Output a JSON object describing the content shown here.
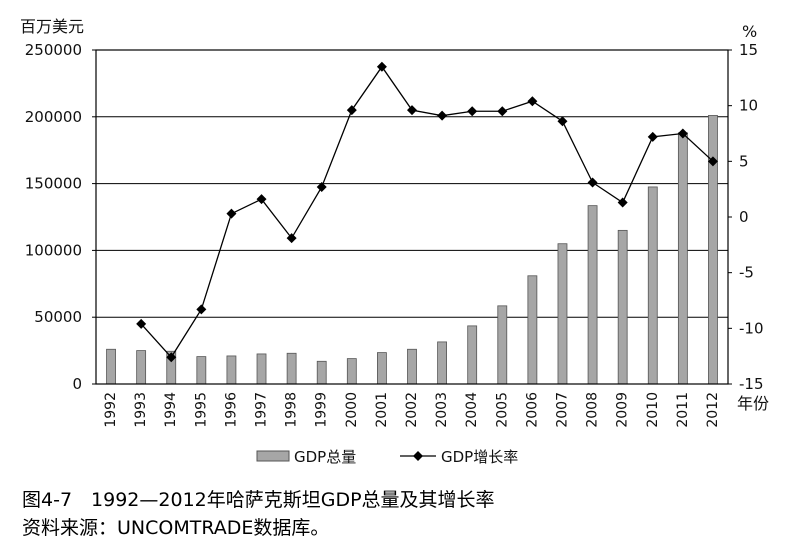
{
  "chart_data": {
    "type": "bar",
    "y_left_unit": "百万美元",
    "y_right_unit": "%",
    "x_unit": "年份",
    "categories": [
      "1992",
      "1993",
      "1994",
      "1995",
      "1996",
      "1997",
      "1998",
      "1999",
      "2000",
      "2001",
      "2002",
      "2003",
      "2004",
      "2005",
      "2006",
      "2007",
      "2008",
      "2009",
      "2010",
      "2011",
      "2012"
    ],
    "ylim_left": [
      0,
      250000
    ],
    "yticks_left": [
      0,
      50000,
      100000,
      150000,
      200000,
      250000
    ],
    "ylim_right": [
      -15,
      15
    ],
    "yticks_right": [
      -15,
      -10,
      -5,
      0,
      5,
      10,
      15
    ],
    "grid": "horizontal",
    "legend_position": "bottom",
    "series": [
      {
        "name": "GDP总量",
        "type": "bar",
        "axis": "left",
        "color": "#a6a6a6",
        "values": [
          26000,
          25000,
          24500,
          20500,
          21000,
          22500,
          23000,
          17000,
          19000,
          23500,
          26000,
          31500,
          43500,
          58500,
          81000,
          105000,
          133500,
          115000,
          147500,
          188000,
          201000
        ]
      },
      {
        "name": "GDP增长率",
        "type": "line",
        "axis": "right",
        "color": "#000000",
        "marker": "diamond",
        "x": [
          "1993",
          "1994",
          "1995",
          "1996",
          "1997",
          "1998",
          "1999",
          "2000",
          "2001",
          "2002",
          "2003",
          "2004",
          "2005",
          "2006",
          "2007",
          "2008",
          "2009",
          "2010",
          "2011",
          "2012"
        ],
        "values": [
          -9.6,
          -12.6,
          -8.3,
          0.3,
          1.6,
          -1.9,
          2.7,
          9.6,
          13.5,
          9.6,
          9.1,
          9.5,
          9.5,
          10.4,
          8.6,
          3.1,
          1.3,
          7.2,
          7.5,
          5.0
        ]
      }
    ]
  },
  "caption": {
    "title": "图4-7　1992—2012年哈萨克斯坦GDP总量及其增长率",
    "source": "资料来源：UNCOMTRADE数据库。"
  }
}
